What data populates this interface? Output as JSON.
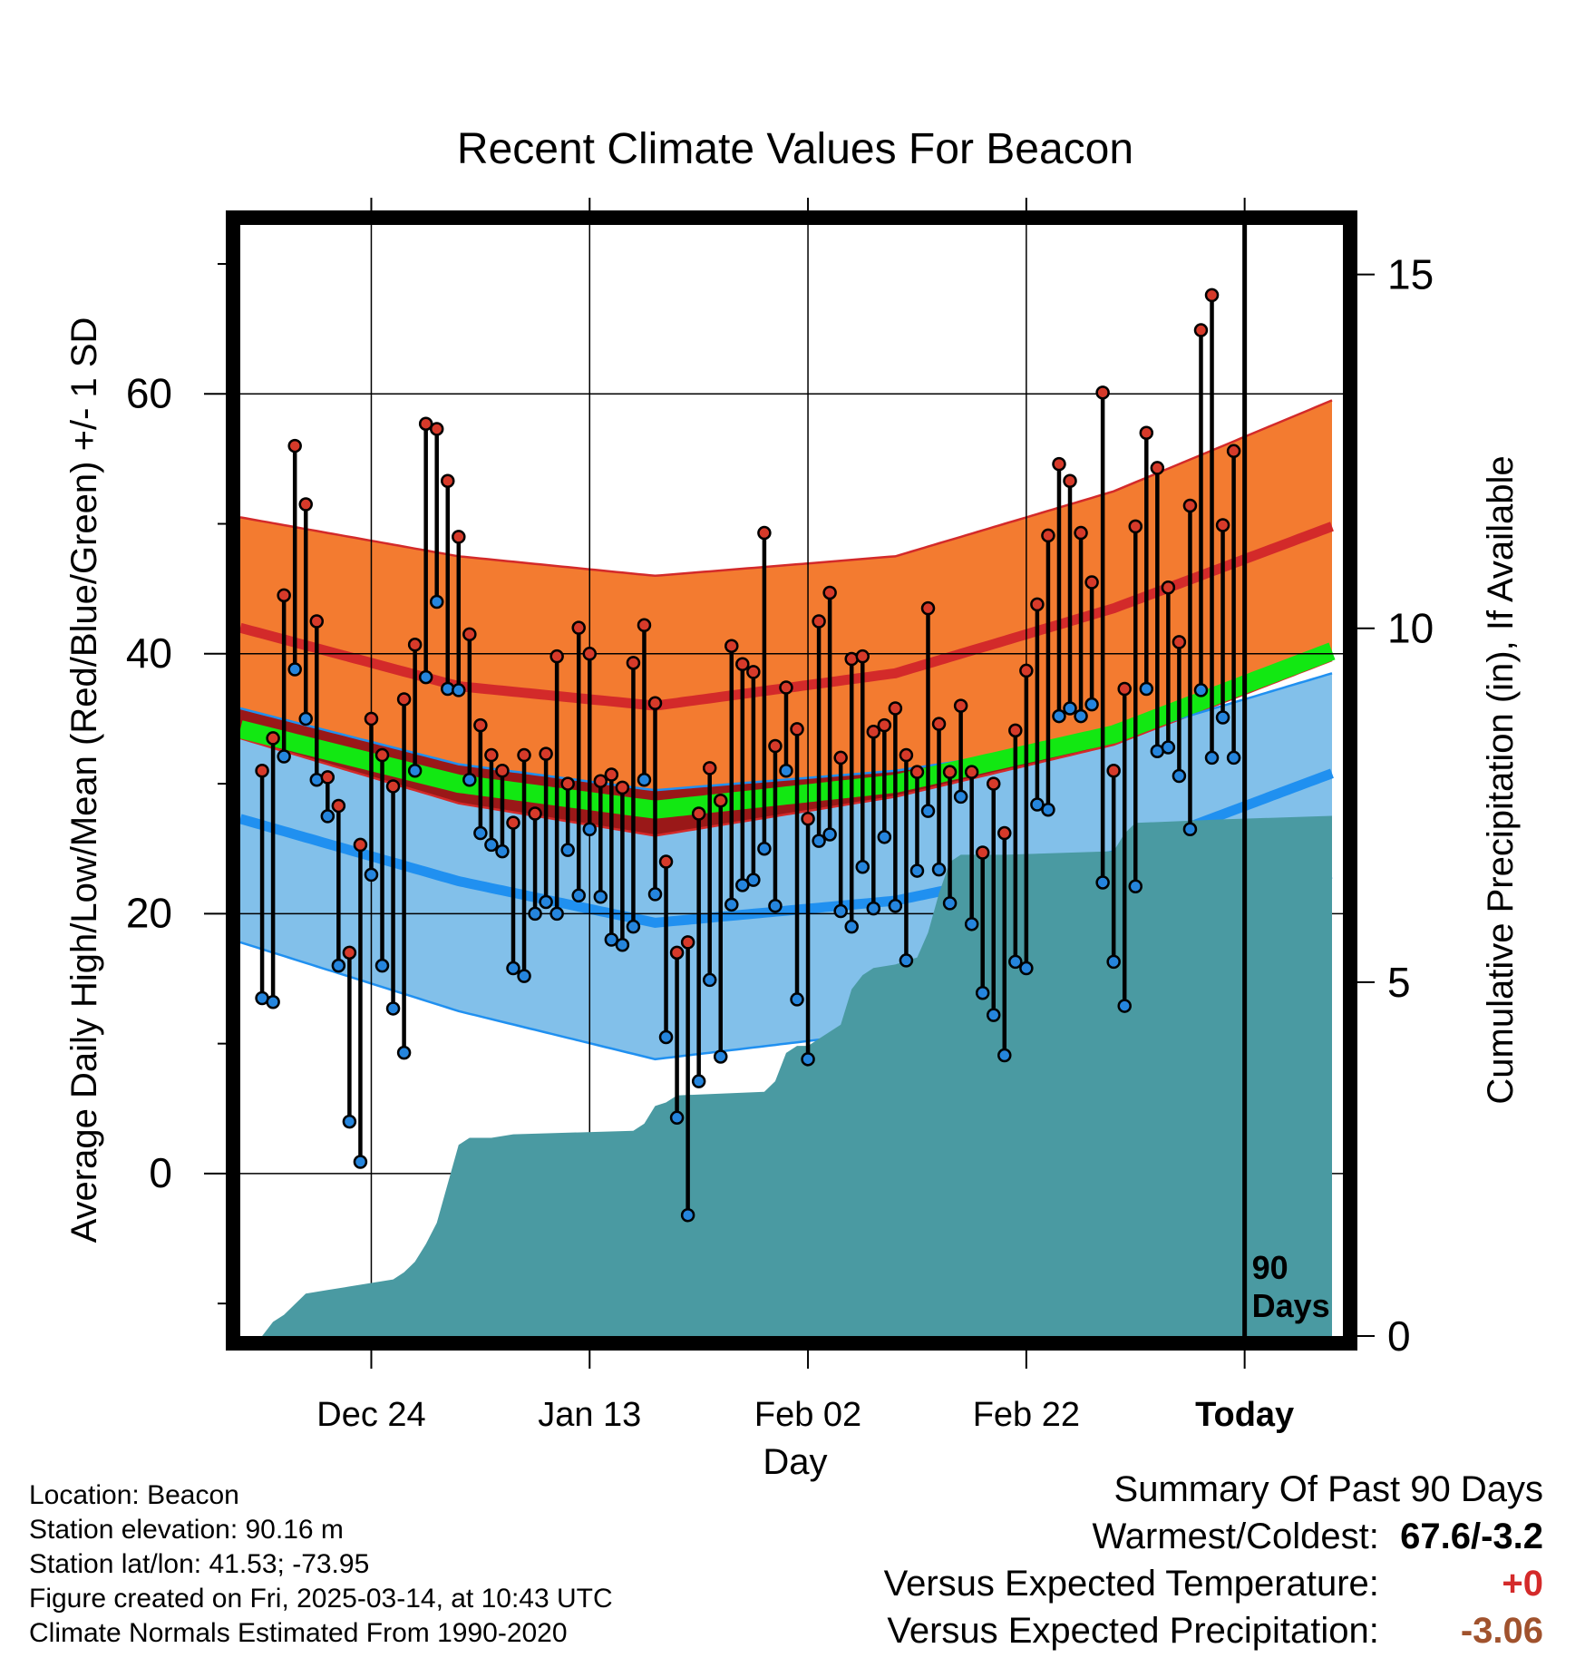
{
  "chart_data": {
    "type": "line",
    "title": "Recent Climate Values For Beacon",
    "xlabel": "Day",
    "ylabel": "Average Daily High/Low/Mean (Red/Blue/Green) +/- 1 SD",
    "y2label": "Cumulative Precipitation (in), If Available",
    "x_ticks": [
      "Dec 24",
      "Jan 13",
      "Feb 02",
      "Feb 22",
      "Today"
    ],
    "x_tick_days": [
      12,
      32,
      52,
      72,
      92
    ],
    "xlim": [
      0,
      101
    ],
    "ylim": [
      -12.5,
      73
    ],
    "y_ticks": [
      0,
      20,
      40,
      60
    ],
    "y2lim": [
      0,
      15.7
    ],
    "y2_ticks": [
      0,
      5,
      10,
      15
    ],
    "window_label": "90\nDays",
    "window_start_day": 2,
    "today_day": 92,
    "normal_high": {
      "days": [
        0,
        20,
        38,
        60,
        80,
        100
      ],
      "mean": [
        42,
        37.5,
        36,
        38.5,
        43.5,
        49.8
      ],
      "plus_sd": [
        50.5,
        47.5,
        46,
        47.5,
        52.5,
        59.5
      ],
      "minus_sd": [
        33.5,
        28.5,
        26,
        29,
        33,
        39.5
      ]
    },
    "normal_low": {
      "days": [
        0,
        20,
        38,
        60,
        80,
        100
      ],
      "mean": [
        27.3,
        22.5,
        19.3,
        21,
        24.5,
        30.8
      ],
      "plus_sd": [
        35.8,
        31.5,
        29.5,
        31,
        33.5,
        38.5
      ],
      "minus_sd": [
        17.8,
        12.5,
        8.8,
        11,
        15.5,
        22.8
      ]
    },
    "normal_mean": {
      "days": [
        0,
        20,
        38,
        60,
        80,
        100
      ],
      "values": [
        34.2,
        30,
        28,
        30,
        33.8,
        40.2
      ]
    },
    "observed_days": [
      2,
      3,
      4,
      5,
      6,
      7,
      8,
      9,
      10,
      11,
      12,
      13,
      14,
      15,
      16,
      17,
      18,
      19,
      20,
      21,
      22,
      23,
      24,
      25,
      26,
      27,
      28,
      29,
      30,
      31,
      32,
      33,
      34,
      35,
      36,
      37,
      38,
      39,
      40,
      41,
      42,
      43,
      44,
      45,
      46,
      47,
      48,
      49,
      50,
      51,
      52,
      53,
      54,
      55,
      56,
      57,
      58,
      59,
      60,
      61,
      62,
      63,
      64,
      65,
      66,
      67,
      68,
      69,
      70,
      71,
      72,
      73,
      74,
      75,
      76,
      77,
      78,
      79,
      80,
      81,
      82,
      83,
      84,
      85,
      86,
      87,
      88,
      89,
      90,
      91
    ],
    "observed_high": [
      31.0,
      33.5,
      44.5,
      56.0,
      51.5,
      42.5,
      30.5,
      28.3,
      17.0,
      25.3,
      35.0,
      32.2,
      29.8,
      36.5,
      40.7,
      57.7,
      57.3,
      53.3,
      49.0,
      41.5,
      34.5,
      32.2,
      31.0,
      27.0,
      32.2,
      27.7,
      32.3,
      39.8,
      30.0,
      42.0,
      40.0,
      30.2,
      30.7,
      29.7,
      39.3,
      42.2,
      36.2,
      24.0,
      17.0,
      17.8,
      27.7,
      31.2,
      28.7,
      40.6,
      39.2,
      38.6,
      49.3,
      32.9,
      37.4,
      34.2,
      27.3,
      42.5,
      44.7,
      32.0,
      39.6,
      39.8,
      34.0,
      34.5,
      35.8,
      32.2,
      30.9,
      43.5,
      34.6,
      30.9,
      36.0,
      30.9,
      24.7,
      30.0,
      26.2,
      34.1,
      38.7,
      43.8,
      49.1,
      54.6,
      53.3,
      49.3,
      45.5,
      60.1,
      31.0,
      37.3,
      49.8,
      57.0,
      54.3,
      45.1,
      40.9,
      51.4,
      64.9,
      67.6,
      49.9,
      55.6
    ],
    "observed_low": [
      13.5,
      13.2,
      32.1,
      38.8,
      35.0,
      30.3,
      27.5,
      16.0,
      4.0,
      0.9,
      23.0,
      16.0,
      12.7,
      9.3,
      31.0,
      38.2,
      44.0,
      37.3,
      37.2,
      30.3,
      26.2,
      25.3,
      24.8,
      15.8,
      15.2,
      20.0,
      20.9,
      20.0,
      24.9,
      21.4,
      26.5,
      21.3,
      18.0,
      17.6,
      19.0,
      30.3,
      21.5,
      10.5,
      4.3,
      -3.2,
      7.1,
      14.9,
      9.0,
      20.7,
      22.2,
      22.6,
      25.0,
      20.6,
      31.0,
      13.4,
      8.8,
      25.6,
      26.1,
      20.2,
      19.0,
      23.6,
      20.4,
      25.9,
      20.6,
      16.4,
      23.3,
      27.9,
      23.4,
      20.8,
      29.0,
      19.2,
      13.9,
      12.2,
      9.1,
      16.3,
      15.8,
      28.4,
      28.0,
      35.2,
      35.8,
      35.2,
      36.1,
      22.4,
      16.3,
      12.9,
      22.1,
      37.3,
      32.5,
      32.8,
      30.6,
      26.5,
      37.2,
      32.0,
      35.1,
      32.0
    ],
    "precip": {
      "days": [
        0,
        2,
        3,
        4,
        6,
        8,
        10,
        12,
        14,
        15,
        16,
        17,
        18,
        20,
        21,
        22,
        23,
        25,
        36,
        37,
        38,
        39,
        40,
        48,
        49,
        50,
        51,
        52,
        55,
        56,
        57,
        58,
        60,
        62,
        63,
        64,
        65,
        66,
        70,
        80,
        81,
        82,
        90,
        100
      ],
      "values": [
        0,
        0,
        0.2,
        0.3,
        0.6,
        0.65,
        0.7,
        0.75,
        0.8,
        0.9,
        1.05,
        1.3,
        1.6,
        2.7,
        2.8,
        2.8,
        2.8,
        2.85,
        2.9,
        3.0,
        3.25,
        3.3,
        3.4,
        3.45,
        3.6,
        4.0,
        4.1,
        4.1,
        4.4,
        4.9,
        5.1,
        5.2,
        5.25,
        5.35,
        5.7,
        6.25,
        6.7,
        6.8,
        6.8,
        6.85,
        7.1,
        7.25,
        7.3,
        7.35
      ]
    }
  },
  "footer": {
    "location": "Location: Beacon",
    "elevation": "Station elevation: 90.16 m",
    "latlon": "Station lat/lon: 41.53; -73.95",
    "created": "Figure created on Fri, 2025-03-14, at 10:43 UTC",
    "normals": "Climate Normals Estimated From 1990-2020"
  },
  "summary": {
    "title": "Summary Of Past 90 Days",
    "warmest_coldest_label": "Warmest/Coldest:",
    "warmest_coldest_value": "67.6/-3.2",
    "temp_label": "Versus Expected Temperature:",
    "temp_value": "+0",
    "precip_label": "Versus Expected Precipitation:",
    "precip_value": "-3.06",
    "colors": {
      "warmest": "#000000",
      "temp": "#d42a2a",
      "precip": "#a0522d"
    }
  },
  "colors": {
    "high_band": "#f37b30",
    "high_mean": "#d32a2a",
    "low_band": "#82c0ea",
    "low_mean": "#2090f0",
    "mean_line": "#12e812",
    "overlap": "#9a1818",
    "precip": "#4a9aa2",
    "high_dot": "#d63a2a",
    "low_dot": "#2585dd"
  }
}
